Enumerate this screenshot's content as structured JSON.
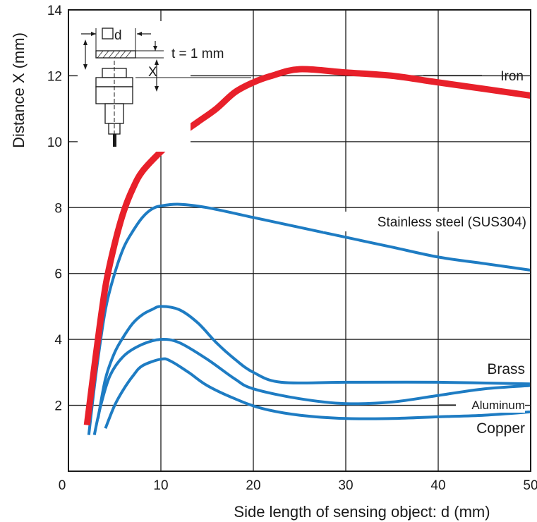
{
  "chart_data": {
    "type": "line",
    "xlabel": "Side length of sensing object: d (mm)",
    "ylabel": "Distance X (mm)",
    "xlim": [
      0,
      50
    ],
    "ylim": [
      0,
      14
    ],
    "x_ticks": [
      0,
      10,
      20,
      30,
      40,
      50
    ],
    "y_ticks": [
      2,
      4,
      6,
      8,
      10,
      12,
      14
    ],
    "grid": true,
    "series": [
      {
        "name": "Iron",
        "color": "#e8202a",
        "points": [
          [
            2,
            1.4
          ],
          [
            3,
            3.6
          ],
          [
            4,
            5.6
          ],
          [
            5,
            6.9
          ],
          [
            6,
            7.9
          ],
          [
            7,
            8.6
          ],
          [
            8,
            9.1
          ],
          [
            10,
            9.7
          ],
          [
            12,
            10.2
          ],
          [
            14,
            10.6
          ],
          [
            16,
            11.0
          ],
          [
            18,
            11.5
          ],
          [
            20,
            11.8
          ],
          [
            22,
            12.0
          ],
          [
            25,
            12.2
          ],
          [
            30,
            12.1
          ],
          [
            35,
            12.0
          ],
          [
            40,
            11.8
          ],
          [
            45,
            11.6
          ],
          [
            50,
            11.4
          ]
        ]
      },
      {
        "name": "Stainless steel (SUS304)",
        "color": "#1e7cc3",
        "points": [
          [
            2.2,
            1.1
          ],
          [
            3,
            3.0
          ],
          [
            4,
            4.9
          ],
          [
            5,
            6.0
          ],
          [
            6,
            6.8
          ],
          [
            7,
            7.3
          ],
          [
            8,
            7.7
          ],
          [
            9,
            7.95
          ],
          [
            10,
            8.05
          ],
          [
            12,
            8.1
          ],
          [
            15,
            8.0
          ],
          [
            20,
            7.7
          ],
          [
            25,
            7.4
          ],
          [
            30,
            7.1
          ],
          [
            35,
            6.8
          ],
          [
            40,
            6.5
          ],
          [
            45,
            6.3
          ],
          [
            50,
            6.1
          ]
        ]
      },
      {
        "name": "Brass",
        "color": "#1e7cc3",
        "points": [
          [
            3.2,
            1.6
          ],
          [
            4,
            2.8
          ],
          [
            5,
            3.6
          ],
          [
            6,
            4.1
          ],
          [
            7,
            4.5
          ],
          [
            8,
            4.75
          ],
          [
            9,
            4.9
          ],
          [
            10,
            5.0
          ],
          [
            12,
            4.9
          ],
          [
            14,
            4.5
          ],
          [
            16,
            3.9
          ],
          [
            18,
            3.4
          ],
          [
            20,
            3.0
          ],
          [
            23,
            2.7
          ],
          [
            30,
            2.7
          ],
          [
            40,
            2.7
          ],
          [
            50,
            2.65
          ]
        ]
      },
      {
        "name": "Aluminum",
        "color": "#1e7cc3",
        "points": [
          [
            2.8,
            1.1
          ],
          [
            3.5,
            2.0
          ],
          [
            4.5,
            2.9
          ],
          [
            6,
            3.5
          ],
          [
            8,
            3.85
          ],
          [
            10,
            4.0
          ],
          [
            12,
            3.9
          ],
          [
            15,
            3.4
          ],
          [
            18,
            2.8
          ],
          [
            20,
            2.5
          ],
          [
            25,
            2.2
          ],
          [
            30,
            2.05
          ],
          [
            35,
            2.1
          ],
          [
            40,
            2.3
          ],
          [
            45,
            2.5
          ],
          [
            50,
            2.6
          ]
        ]
      },
      {
        "name": "Copper",
        "color": "#1e7cc3",
        "points": [
          [
            4,
            1.3
          ],
          [
            5,
            2.0
          ],
          [
            6,
            2.5
          ],
          [
            7,
            2.9
          ],
          [
            8,
            3.2
          ],
          [
            10,
            3.4
          ],
          [
            11,
            3.35
          ],
          [
            13,
            3.0
          ],
          [
            15,
            2.6
          ],
          [
            18,
            2.2
          ],
          [
            21,
            1.9
          ],
          [
            25,
            1.7
          ],
          [
            30,
            1.6
          ],
          [
            35,
            1.6
          ],
          [
            40,
            1.65
          ],
          [
            45,
            1.7
          ],
          [
            50,
            1.8
          ]
        ]
      }
    ]
  },
  "inset": {
    "d_label": "d",
    "t_label": "t = 1 mm",
    "x_label": "X"
  }
}
